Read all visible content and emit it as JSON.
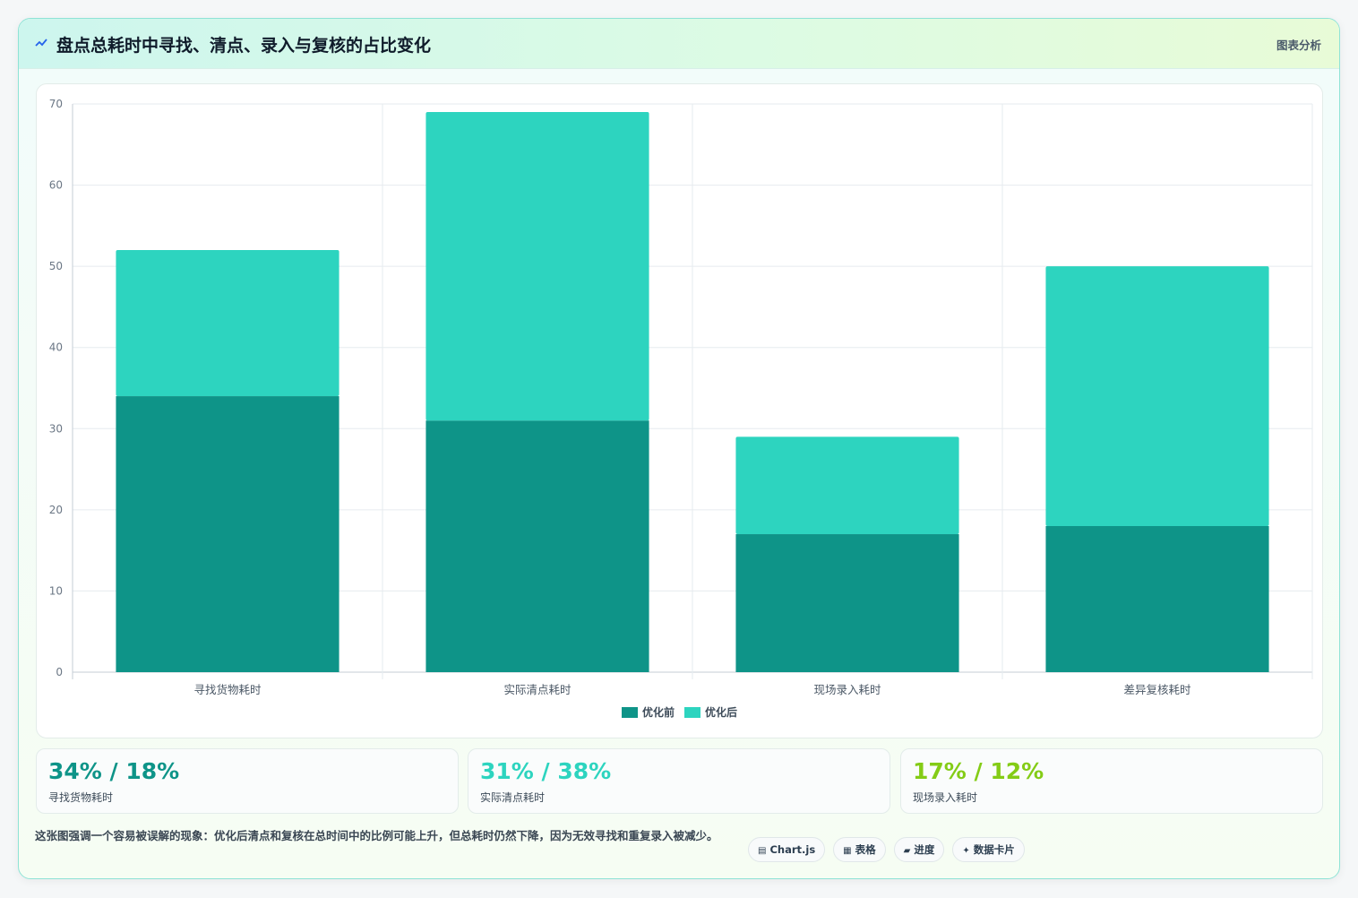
{
  "header": {
    "title": "盘点总耗时中寻找、清点、录入与复核的占比变化",
    "tag": "图表分析",
    "icon": "trend-icon"
  },
  "chart_data": {
    "type": "bar",
    "stacked": true,
    "categories": [
      "寻找货物耗时",
      "实际清点耗时",
      "现场录入耗时",
      "差异复核耗时"
    ],
    "series": [
      {
        "name": "优化前",
        "values": [
          34,
          31,
          17,
          18
        ],
        "color": "#0e9488"
      },
      {
        "name": "优化后",
        "values": [
          18,
          38,
          12,
          32
        ],
        "color": "#2dd4bf"
      }
    ],
    "ylim": [
      0,
      70
    ],
    "yticks": [
      0,
      10,
      20,
      30,
      40,
      50,
      60,
      70
    ],
    "grid": true,
    "legend": "bottom-center"
  },
  "stats": [
    {
      "value": "34% / 18%",
      "label": "寻找货物耗时",
      "color": "#0e9488"
    },
    {
      "value": "31% / 38%",
      "label": "实际清点耗时",
      "color": "#2dd4bf"
    },
    {
      "value": "17% / 12%",
      "label": "现场录入耗时",
      "color": "#84cc16"
    }
  ],
  "note": "这张图强调一个容易被误解的现象：优化后清点和复核在总时间中的比例可能上升，但总耗时仍然下降，因为无效寻找和重复录入被减少。",
  "chips": [
    {
      "glyph": "▤",
      "label": "Chart.js"
    },
    {
      "glyph": "▦",
      "label": "表格"
    },
    {
      "glyph": "▰",
      "label": "进度"
    },
    {
      "glyph": "✦",
      "label": "数据卡片"
    }
  ]
}
